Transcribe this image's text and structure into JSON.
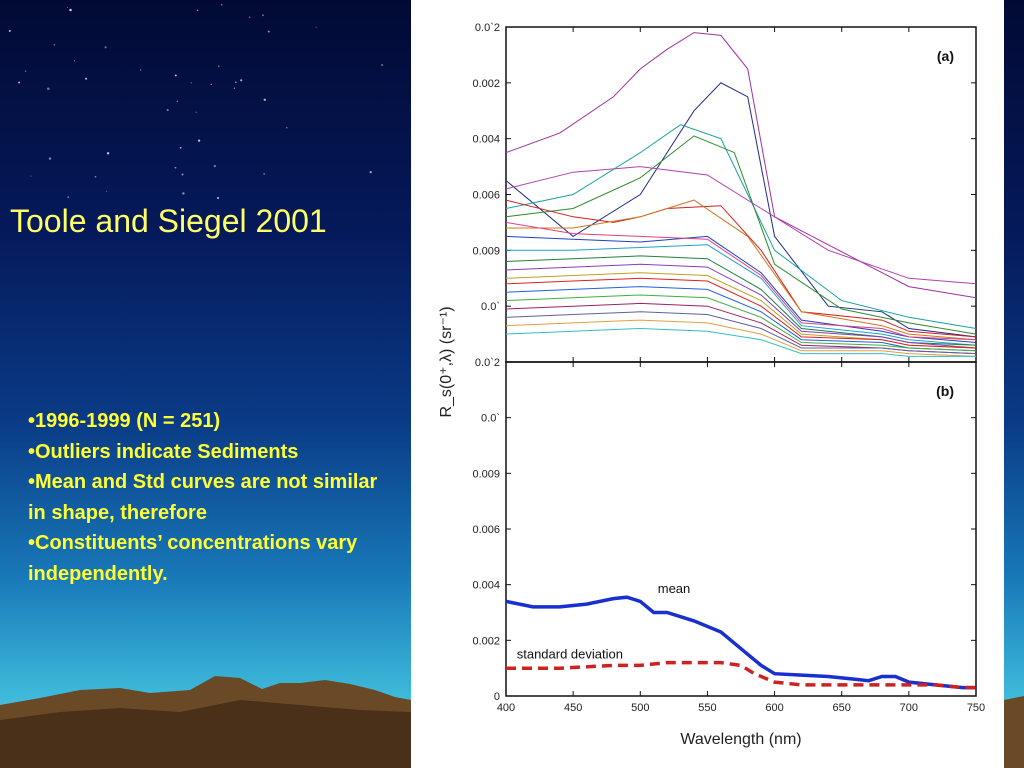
{
  "slide": {
    "title": "Toole and Siegel 2001",
    "bullets": [
      "•1996-1999 (N = 251)",
      "•Outliers indicate Sediments",
      "•Mean and Std curves are not similar in shape, therefore",
      "•Constituents’ concentrations vary independently."
    ],
    "colors": {
      "title": "#ffff66",
      "bullets": "#ffff33",
      "background_top": "#020a34",
      "background_bottom": "#6ad3e6"
    }
  },
  "chart_data": [
    {
      "type": "line",
      "panel": "(a)",
      "xlim": [
        400,
        750
      ],
      "ylim": [
        0,
        0.012
      ],
      "ytick_labels": [
        "0.0`2",
        "0.0`",
        "0.009",
        "0.006",
        "0.004",
        "0.002",
        "0.0`2"
      ],
      "ylabel": "R_s(0⁺,λ) (sr⁻¹)",
      "grid": false,
      "description_of_series": "251 individual reflectance spectra, 1996-1999",
      "series": [
        {
          "color": "#a0309e",
          "x": [
            400,
            440,
            480,
            500,
            520,
            540,
            560,
            580,
            600,
            640,
            680,
            700,
            750
          ],
          "y": [
            0.0075,
            0.0082,
            0.0095,
            0.0105,
            0.0112,
            0.0118,
            0.0117,
            0.0105,
            0.0052,
            0.0042,
            0.0032,
            0.0027,
            0.0023
          ]
        },
        {
          "color": "#1e2a8a",
          "x": [
            400,
            450,
            500,
            520,
            540,
            560,
            580,
            600,
            640,
            680,
            700,
            750
          ],
          "y": [
            0.0065,
            0.0045,
            0.006,
            0.0075,
            0.009,
            0.01,
            0.0095,
            0.0045,
            0.002,
            0.0018,
            0.0012,
            0.0009
          ]
        },
        {
          "color": "#17a0a0",
          "x": [
            400,
            450,
            500,
            530,
            560,
            600,
            650,
            700,
            750
          ],
          "y": [
            0.0055,
            0.006,
            0.0075,
            0.0085,
            0.008,
            0.004,
            0.0022,
            0.0016,
            0.0012
          ]
        },
        {
          "color": "#2e8b2e",
          "x": [
            400,
            450,
            500,
            540,
            570,
            600,
            650,
            700,
            750
          ],
          "y": [
            0.0052,
            0.0055,
            0.0066,
            0.0081,
            0.0075,
            0.0035,
            0.0019,
            0.0014,
            0.001
          ]
        },
        {
          "color": "#cc2020",
          "x": [
            400,
            450,
            480,
            500,
            520,
            560,
            590,
            620,
            680,
            700,
            750
          ],
          "y": [
            0.0058,
            0.0052,
            0.005,
            0.0052,
            0.0055,
            0.0056,
            0.004,
            0.0018,
            0.0015,
            0.0011,
            0.0009
          ]
        },
        {
          "color": "#d07820",
          "x": [
            400,
            450,
            500,
            540,
            580,
            620,
            680,
            700,
            750
          ],
          "y": [
            0.0048,
            0.0048,
            0.0052,
            0.0058,
            0.0045,
            0.0018,
            0.0013,
            0.001,
            0.0008
          ]
        },
        {
          "color": "#b040b0",
          "x": [
            400,
            450,
            500,
            550,
            590,
            640,
            700,
            750
          ],
          "y": [
            0.0062,
            0.0068,
            0.007,
            0.0067,
            0.0055,
            0.004,
            0.003,
            0.0028
          ]
        },
        {
          "color": "#2040c0",
          "x": [
            400,
            450,
            500,
            550,
            590,
            620,
            680,
            700,
            750
          ],
          "y": [
            0.0045,
            0.0044,
            0.0043,
            0.0045,
            0.0032,
            0.0015,
            0.0011,
            0.0009,
            0.0007
          ]
        },
        {
          "color": "#20a0d0",
          "x": [
            400,
            450,
            500,
            550,
            590,
            620,
            680,
            700,
            750
          ],
          "y": [
            0.004,
            0.004,
            0.0041,
            0.0042,
            0.003,
            0.0013,
            0.001,
            0.0008,
            0.0006
          ]
        },
        {
          "color": "#e04080",
          "x": [
            400,
            450,
            500,
            550,
            590,
            620,
            680,
            700,
            750
          ],
          "y": [
            0.005,
            0.0046,
            0.0045,
            0.0044,
            0.0031,
            0.0014,
            0.0012,
            0.0009,
            0.0008
          ]
        },
        {
          "color": "#208040",
          "x": [
            400,
            450,
            500,
            550,
            590,
            620,
            680,
            700,
            750
          ],
          "y": [
            0.0036,
            0.0037,
            0.0038,
            0.0037,
            0.0026,
            0.0012,
            0.0009,
            0.0007,
            0.0006
          ]
        },
        {
          "color": "#8040c0",
          "x": [
            400,
            450,
            500,
            550,
            590,
            620,
            680,
            700,
            750
          ],
          "y": [
            0.0033,
            0.0034,
            0.0035,
            0.0034,
            0.0024,
            0.0011,
            0.0009,
            0.0007,
            0.0005
          ]
        },
        {
          "color": "#c0a020",
          "x": [
            400,
            450,
            500,
            550,
            590,
            620,
            680,
            700,
            750
          ],
          "y": [
            0.003,
            0.0031,
            0.0032,
            0.0031,
            0.0022,
            0.001,
            0.0008,
            0.0006,
            0.0005
          ]
        },
        {
          "color": "#e02020",
          "x": [
            400,
            450,
            500,
            550,
            590,
            620,
            680,
            700,
            750
          ],
          "y": [
            0.0028,
            0.0029,
            0.003,
            0.0029,
            0.002,
            0.0009,
            0.0008,
            0.0006,
            0.0005
          ]
        },
        {
          "color": "#2060e0",
          "x": [
            400,
            450,
            500,
            550,
            590,
            620,
            680,
            700,
            750
          ],
          "y": [
            0.0025,
            0.0026,
            0.0027,
            0.0026,
            0.0018,
            0.0008,
            0.0007,
            0.0005,
            0.0004
          ]
        },
        {
          "color": "#40b040",
          "x": [
            400,
            450,
            500,
            550,
            590,
            620,
            680,
            700,
            750
          ],
          "y": [
            0.0022,
            0.0023,
            0.0024,
            0.0023,
            0.0016,
            0.0007,
            0.0006,
            0.0005,
            0.0004
          ]
        },
        {
          "color": "#a02060",
          "x": [
            400,
            450,
            500,
            550,
            590,
            620,
            680,
            700,
            750
          ],
          "y": [
            0.0019,
            0.002,
            0.0021,
            0.002,
            0.0014,
            0.0006,
            0.0005,
            0.0004,
            0.0003
          ]
        },
        {
          "color": "#6060a0",
          "x": [
            400,
            450,
            500,
            550,
            590,
            620,
            680,
            700,
            750
          ],
          "y": [
            0.0016,
            0.0017,
            0.0018,
            0.0017,
            0.0012,
            0.0005,
            0.0005,
            0.0004,
            0.0003
          ]
        },
        {
          "color": "#e0a040",
          "x": [
            400,
            450,
            500,
            550,
            590,
            620,
            680,
            700,
            750
          ],
          "y": [
            0.0013,
            0.0014,
            0.0015,
            0.0014,
            0.001,
            0.0004,
            0.0004,
            0.0003,
            0.0002
          ]
        },
        {
          "color": "#30c0c0",
          "x": [
            400,
            450,
            500,
            550,
            590,
            620,
            680,
            700,
            750
          ],
          "y": [
            0.001,
            0.0011,
            0.0012,
            0.0011,
            0.0008,
            0.0003,
            0.0003,
            0.0002,
            0.0002
          ]
        }
      ]
    },
    {
      "type": "line",
      "panel": "(b)",
      "xlim": [
        400,
        750
      ],
      "ylim": [
        0,
        0.012
      ],
      "xticks": [
        400,
        450,
        500,
        550,
        600,
        650,
        700,
        750
      ],
      "ytick_labels": [
        "0",
        "0.002",
        "0.004",
        "0.006",
        "0.009",
        "0.0`",
        "0.0`2"
      ],
      "xlabel": "Wavelength (nm)",
      "grid": false,
      "series": [
        {
          "name": "mean",
          "color": "#1a2fd0",
          "style": "solid",
          "x": [
            400,
            420,
            440,
            460,
            480,
            490,
            500,
            510,
            520,
            540,
            560,
            580,
            590,
            600,
            620,
            640,
            660,
            670,
            680,
            690,
            700,
            720,
            740,
            750
          ],
          "y": [
            0.0034,
            0.0032,
            0.0032,
            0.0033,
            0.0035,
            0.00355,
            0.0034,
            0.003,
            0.003,
            0.0027,
            0.0023,
            0.0015,
            0.0011,
            0.0008,
            0.00075,
            0.0007,
            0.0006,
            0.00055,
            0.0007,
            0.0007,
            0.0005,
            0.0004,
            0.0003,
            0.0003
          ]
        },
        {
          "name": "standard deviation",
          "color": "#cc2222",
          "style": "dashed",
          "x": [
            400,
            440,
            480,
            500,
            520,
            540,
            560,
            575,
            585,
            600,
            620,
            640,
            660,
            680,
            700,
            720,
            740,
            750
          ],
          "y": [
            0.001,
            0.001,
            0.0011,
            0.0011,
            0.0012,
            0.0012,
            0.0012,
            0.0011,
            0.0008,
            0.0005,
            0.0004,
            0.0004,
            0.0004,
            0.0004,
            0.0004,
            0.0004,
            0.0003,
            0.0003
          ]
        }
      ]
    }
  ]
}
